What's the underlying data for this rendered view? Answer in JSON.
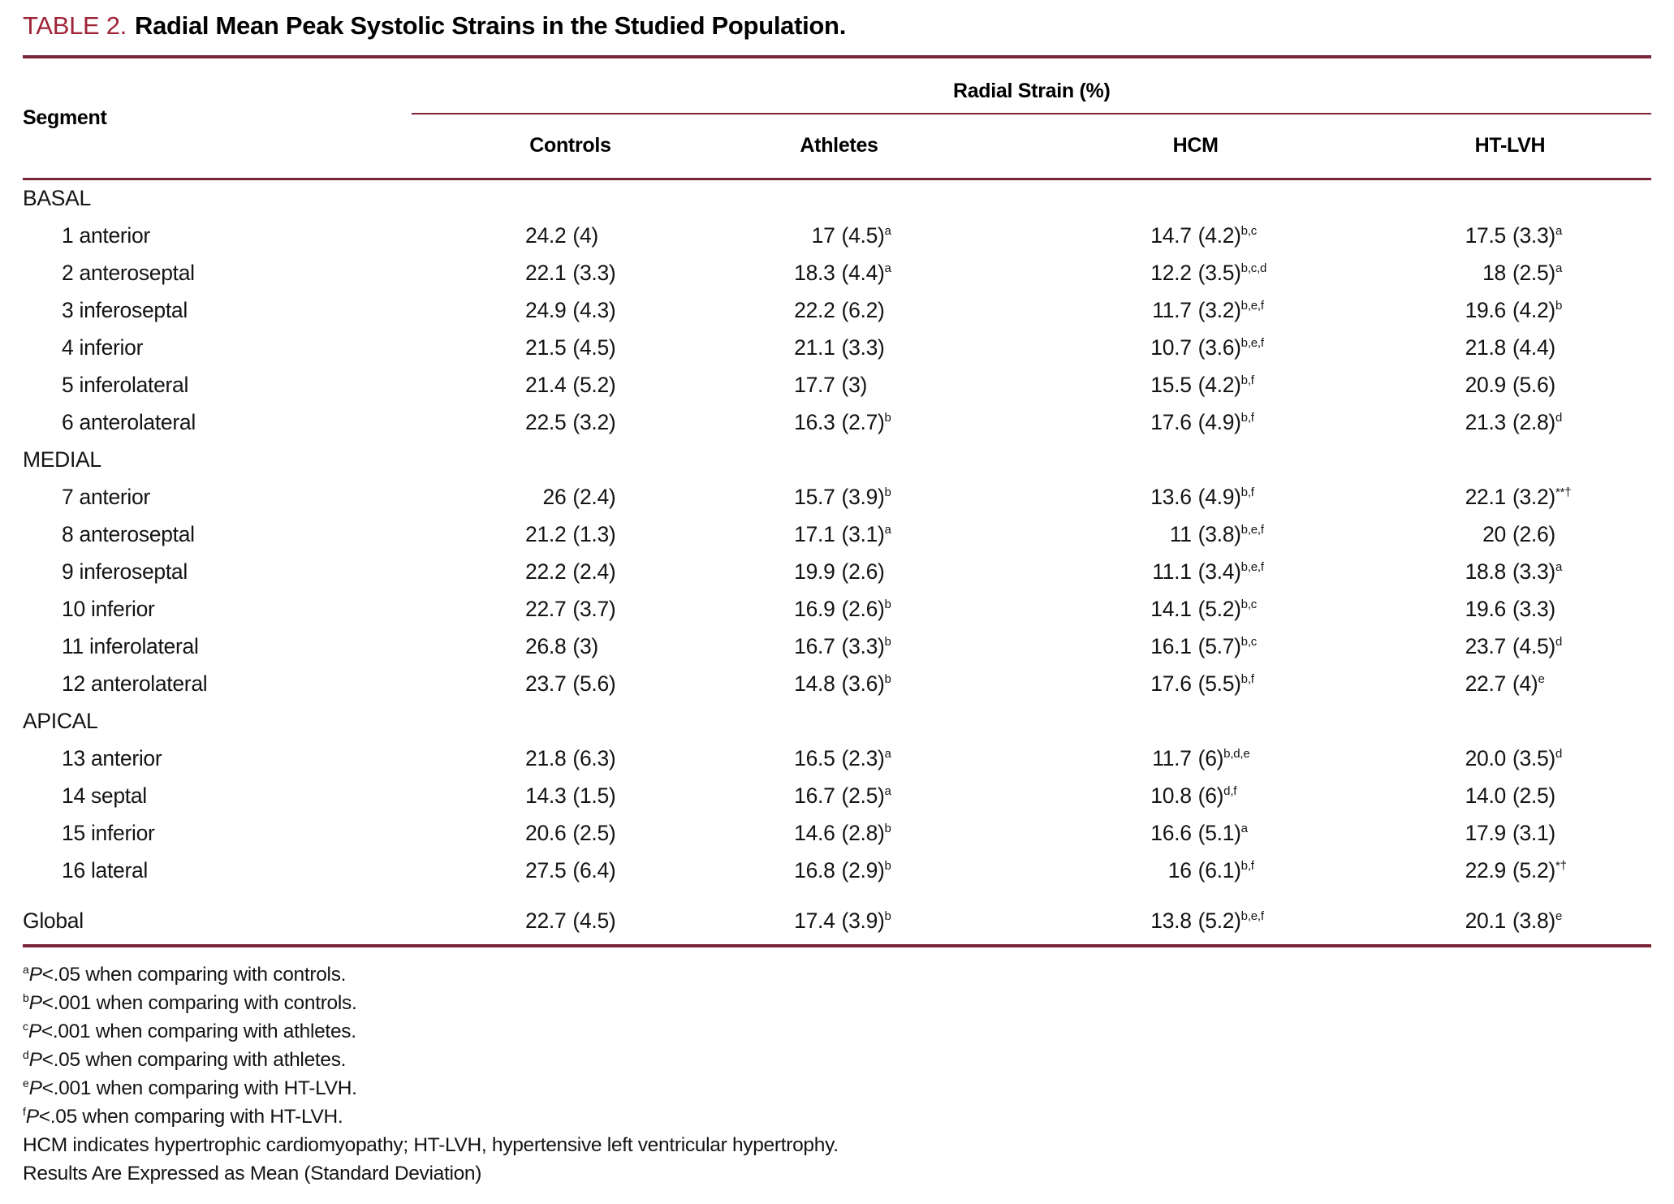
{
  "title": {
    "label": "TABLE 2.",
    "text": "Radial Mean Peak Systolic Strains in the Studied Population."
  },
  "colors": {
    "accent": "#9f2438",
    "rule": "#7d2436",
    "text": "#141414"
  },
  "table": {
    "span_header": "Radial Strain (%)",
    "row_header": "Segment",
    "columns": [
      "Controls",
      "Athletes",
      "HCM",
      "HT-LVH"
    ],
    "sections": [
      {
        "name": "BASAL",
        "rows": [
          {
            "label": "1 anterior",
            "cells": [
              {
                "mean": "24.2",
                "sd": "(4)",
                "sup": ""
              },
              {
                "mean": "17",
                "sd": "(4.5)",
                "sup": "a"
              },
              {
                "mean": "14.7",
                "sd": "(4.2)",
                "sup": "b,c"
              },
              {
                "mean": "17.5",
                "sd": "(3.3)",
                "sup": "a"
              }
            ]
          },
          {
            "label": "2 anteroseptal",
            "cells": [
              {
                "mean": "22.1",
                "sd": "(3.3)",
                "sup": ""
              },
              {
                "mean": "18.3",
                "sd": "(4.4)",
                "sup": "a"
              },
              {
                "mean": "12.2",
                "sd": "(3.5)",
                "sup": "b,c,d"
              },
              {
                "mean": "18",
                "sd": "(2.5)",
                "sup": "a"
              }
            ]
          },
          {
            "label": "3 inferoseptal",
            "cells": [
              {
                "mean": "24.9",
                "sd": "(4.3)",
                "sup": ""
              },
              {
                "mean": "22.2",
                "sd": "(6.2)",
                "sup": ""
              },
              {
                "mean": "11.7",
                "sd": "(3.2)",
                "sup": "b,e,f"
              },
              {
                "mean": "19.6",
                "sd": "(4.2)",
                "sup": "b"
              }
            ]
          },
          {
            "label": "4 inferior",
            "cells": [
              {
                "mean": "21.5",
                "sd": "(4.5)",
                "sup": ""
              },
              {
                "mean": "21.1",
                "sd": "(3.3)",
                "sup": ""
              },
              {
                "mean": "10.7",
                "sd": "(3.6)",
                "sup": "b,e,f"
              },
              {
                "mean": "21.8",
                "sd": "(4.4)",
                "sup": ""
              }
            ]
          },
          {
            "label": "5 inferolateral",
            "cells": [
              {
                "mean": "21.4",
                "sd": "(5.2)",
                "sup": ""
              },
              {
                "mean": "17.7",
                "sd": "(3)",
                "sup": ""
              },
              {
                "mean": "15.5",
                "sd": "(4.2)",
                "sup": "b,f"
              },
              {
                "mean": "20.9",
                "sd": "(5.6)",
                "sup": ""
              }
            ]
          },
          {
            "label": "6 anterolateral",
            "cells": [
              {
                "mean": "22.5",
                "sd": "(3.2)",
                "sup": ""
              },
              {
                "mean": "16.3",
                "sd": "(2.7)",
                "sup": "b"
              },
              {
                "mean": "17.6",
                "sd": "(4.9)",
                "sup": "b,f"
              },
              {
                "mean": "21.3",
                "sd": "(2.8)",
                "sup": "d"
              }
            ]
          }
        ]
      },
      {
        "name": "MEDIAL",
        "rows": [
          {
            "label": "7 anterior",
            "cells": [
              {
                "mean": "26",
                "sd": "(2.4)",
                "sup": ""
              },
              {
                "mean": "15.7",
                "sd": "(3.9)",
                "sup": "b"
              },
              {
                "mean": "13.6",
                "sd": "(4.9)",
                "sup": "b,f"
              },
              {
                "mean": "22.1",
                "sd": "(3.2)",
                "sup": "**†"
              }
            ]
          },
          {
            "label": "8 anteroseptal",
            "cells": [
              {
                "mean": "21.2",
                "sd": "(1.3)",
                "sup": ""
              },
              {
                "mean": "17.1",
                "sd": "(3.1)",
                "sup": "a"
              },
              {
                "mean": "11",
                "sd": "(3.8)",
                "sup": "b,e,f"
              },
              {
                "mean": "20",
                "sd": "(2.6)",
                "sup": ""
              }
            ]
          },
          {
            "label": "9 inferoseptal",
            "cells": [
              {
                "mean": "22.2",
                "sd": "(2.4)",
                "sup": ""
              },
              {
                "mean": "19.9",
                "sd": "(2.6)",
                "sup": ""
              },
              {
                "mean": "11.1",
                "sd": "(3.4)",
                "sup": "b,e,f"
              },
              {
                "mean": "18.8",
                "sd": "(3.3)",
                "sup": "a"
              }
            ]
          },
          {
            "label": "10 inferior",
            "cells": [
              {
                "mean": "22.7",
                "sd": "(3.7)",
                "sup": ""
              },
              {
                "mean": "16.9",
                "sd": "(2.6)",
                "sup": "b"
              },
              {
                "mean": "14.1",
                "sd": "(5.2)",
                "sup": "b,c"
              },
              {
                "mean": "19.6",
                "sd": "(3.3)",
                "sup": ""
              }
            ]
          },
          {
            "label": "11 inferolateral",
            "cells": [
              {
                "mean": "26.8",
                "sd": "(3)",
                "sup": ""
              },
              {
                "mean": "16.7",
                "sd": "(3.3)",
                "sup": "b"
              },
              {
                "mean": "16.1",
                "sd": "(5.7)",
                "sup": "b,c"
              },
              {
                "mean": "23.7",
                "sd": "(4.5)",
                "sup": "d"
              }
            ]
          },
          {
            "label": "12 anterolateral",
            "cells": [
              {
                "mean": "23.7",
                "sd": "(5.6)",
                "sup": ""
              },
              {
                "mean": "14.8",
                "sd": "(3.6)",
                "sup": "b"
              },
              {
                "mean": "17.6",
                "sd": "(5.5)",
                "sup": "b,f"
              },
              {
                "mean": "22.7",
                "sd": "(4)",
                "sup": "e"
              }
            ]
          }
        ]
      },
      {
        "name": "APICAL",
        "rows": [
          {
            "label": "13 anterior",
            "cells": [
              {
                "mean": "21.8",
                "sd": "(6.3)",
                "sup": ""
              },
              {
                "mean": "16.5",
                "sd": "(2.3)",
                "sup": "a"
              },
              {
                "mean": "11.7",
                "sd": "(6)",
                "sup": "b,d,e"
              },
              {
                "mean": "20.0",
                "sd": "(3.5)",
                "sup": "d"
              }
            ]
          },
          {
            "label": "14 septal",
            "cells": [
              {
                "mean": "14.3",
                "sd": "(1.5)",
                "sup": ""
              },
              {
                "mean": "16.7",
                "sd": "(2.5)",
                "sup": "a"
              },
              {
                "mean": "10.8",
                "sd": "(6)",
                "sup": "d,f"
              },
              {
                "mean": "14.0",
                "sd": "(2.5)",
                "sup": ""
              }
            ]
          },
          {
            "label": "15 inferior",
            "cells": [
              {
                "mean": "20.6",
                "sd": "(2.5)",
                "sup": ""
              },
              {
                "mean": "14.6",
                "sd": "(2.8)",
                "sup": "b"
              },
              {
                "mean": "16.6",
                "sd": "(5.1)",
                "sup": "a"
              },
              {
                "mean": "17.9",
                "sd": "(3.1)",
                "sup": ""
              }
            ]
          },
          {
            "label": "16 lateral",
            "cells": [
              {
                "mean": "27.5",
                "sd": "(6.4)",
                "sup": ""
              },
              {
                "mean": "16.8",
                "sd": "(2.9)",
                "sup": "b"
              },
              {
                "mean": "16",
                "sd": "(6.1)",
                "sup": "b,f"
              },
              {
                "mean": "22.9",
                "sd": "(5.2)",
                "sup": "*†"
              }
            ]
          }
        ]
      }
    ],
    "global_row": {
      "label": "Global",
      "cells": [
        {
          "mean": "22.7",
          "sd": "(4.5)",
          "sup": ""
        },
        {
          "mean": "17.4",
          "sd": "(3.9)",
          "sup": "b"
        },
        {
          "mean": "13.8",
          "sd": "(5.2)",
          "sup": "b,e,f"
        },
        {
          "mean": "20.1",
          "sd": "(3.8)",
          "sup": "e"
        }
      ]
    }
  },
  "footnotes": [
    {
      "sup": "a",
      "p": "P",
      "text": "<.05 when comparing with controls."
    },
    {
      "sup": "b",
      "p": "P",
      "text": "<.001 when comparing with controls."
    },
    {
      "sup": "c",
      "p": "P",
      "text": "<.001 when comparing with athletes."
    },
    {
      "sup": "d",
      "p": "P",
      "text": "<.05 when comparing with athletes."
    },
    {
      "sup": "e",
      "p": "P",
      "text": "<.001 when comparing with HT-LVH."
    },
    {
      "sup": "f",
      "p": "P",
      "text": "<.05 when comparing with HT-LVH."
    },
    {
      "sup": "",
      "p": "",
      "text": "HCM indicates hypertrophic cardiomyopathy; HT-LVH, hypertensive left ventricular hypertrophy."
    },
    {
      "sup": "",
      "p": "",
      "text": "Results Are Expressed as Mean (Standard Deviation)"
    }
  ]
}
